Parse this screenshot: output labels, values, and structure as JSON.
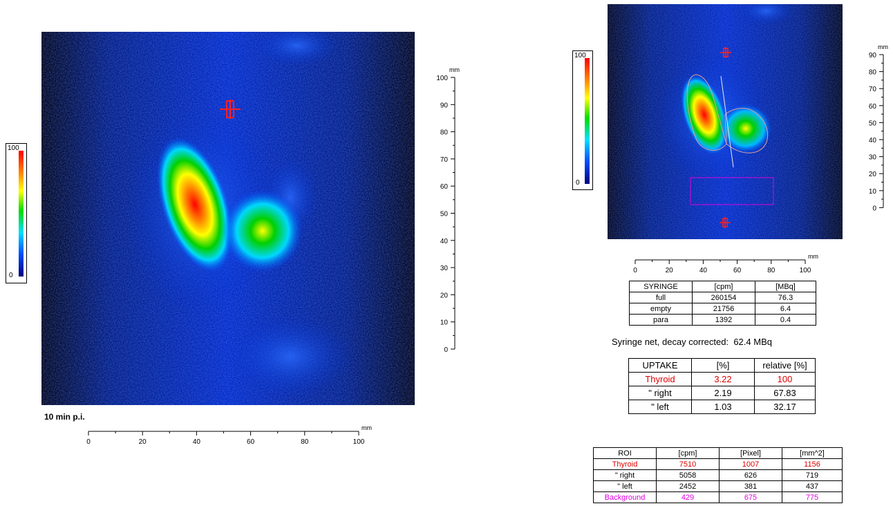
{
  "left_scan": {
    "caption": "10 min p.i.",
    "colorbar": {
      "max": "100",
      "min": "0"
    },
    "v_axis": {
      "unit": "mm",
      "ticks": [
        "100",
        "90",
        "80",
        "70",
        "60",
        "50",
        "40",
        "30",
        "20",
        "10",
        "0"
      ]
    },
    "h_axis": {
      "unit": "mm",
      "ticks": [
        "0",
        "20",
        "40",
        "60",
        "80",
        "100"
      ]
    }
  },
  "right_scan": {
    "colorbar": {
      "max": "100",
      "min": "0"
    },
    "v_axis": {
      "unit": "mm",
      "ticks": [
        "90",
        "80",
        "70",
        "60",
        "50",
        "40",
        "30",
        "20",
        "10",
        "0"
      ]
    },
    "h_axis": {
      "unit": "mm",
      "ticks": [
        "0",
        "20",
        "40",
        "60",
        "80",
        "100"
      ]
    }
  },
  "syringe_table": {
    "headers": [
      "SYRINGE",
      "[cpm]",
      "[MBq]"
    ],
    "rows": [
      [
        "full",
        "260154",
        "76.3"
      ],
      [
        "empty",
        "21756",
        "6.4"
      ],
      [
        "para",
        "1392",
        "0.4"
      ]
    ]
  },
  "syringe_note": {
    "label": "Syringe net, decay corrected:",
    "value": "62.4 MBq"
  },
  "uptake_table": {
    "headers": [
      "UPTAKE",
      "[%]",
      "relative [%]"
    ],
    "rows": [
      [
        "Thyroid",
        "3.22",
        "100"
      ],
      [
        "\"  right",
        "2.19",
        "67.83"
      ],
      [
        "\"  left",
        "1.03",
        "32.17"
      ]
    ]
  },
  "roi_table": {
    "headers": [
      "ROI",
      "[cpm]",
      "[Pixel]",
      "[mm^2]"
    ],
    "rows": [
      [
        "Thyroid",
        "7510",
        "1007",
        "1156"
      ],
      [
        "\"  right",
        "5058",
        "626",
        "719"
      ],
      [
        "\"  left",
        "2452",
        "381",
        "437"
      ],
      [
        "Background",
        "429",
        "675",
        "775"
      ]
    ]
  },
  "colors": {
    "thyroid_red": "#e00000",
    "background_magenta": "#e000e0",
    "marker_red": "#ff2020"
  }
}
